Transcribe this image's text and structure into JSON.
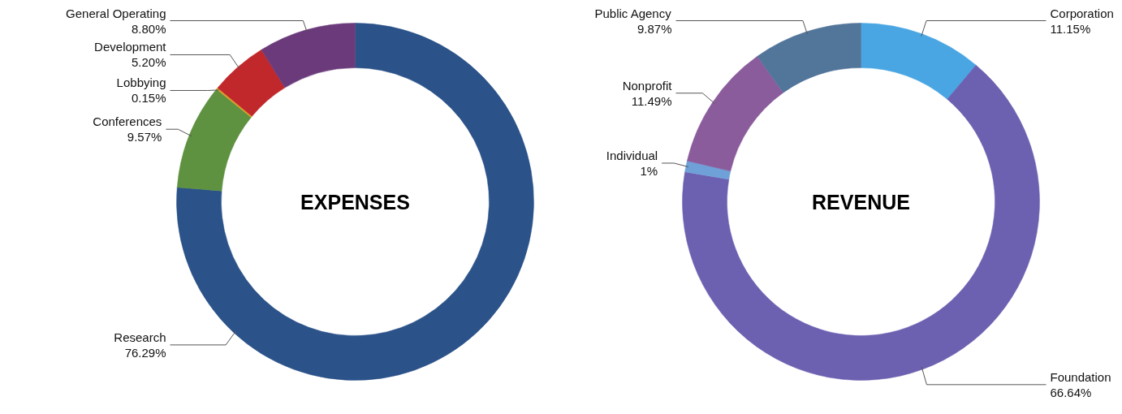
{
  "chart_data": [
    {
      "type": "donut",
      "title": "EXPENSES",
      "categories": [
        "Research",
        "Conferences",
        "Lobbying",
        "Development",
        "General Operating"
      ],
      "values": [
        76.29,
        9.57,
        0.15,
        5.2,
        8.8
      ],
      "value_labels": [
        "76.29%",
        "9.57%",
        "0.15%",
        "5.20%",
        "8.80%"
      ],
      "colors": [
        "#2b5289",
        "#5e9140",
        "#e0a020",
        "#c0282c",
        "#6b3a7a"
      ]
    },
    {
      "type": "donut",
      "title": "REVENUE",
      "categories": [
        "Corporation",
        "Foundation",
        "Individual",
        "Nonprofit",
        "Public Agency"
      ],
      "values": [
        11.15,
        66.64,
        1,
        11.49,
        9.87
      ],
      "value_labels": [
        "11.15%",
        "66.64%",
        "1%",
        "11.49%",
        "9.87%"
      ],
      "colors": [
        "#4aa6e3",
        "#6c60b0",
        "#6fa0d8",
        "#8b5c9c",
        "#52759a"
      ]
    }
  ]
}
